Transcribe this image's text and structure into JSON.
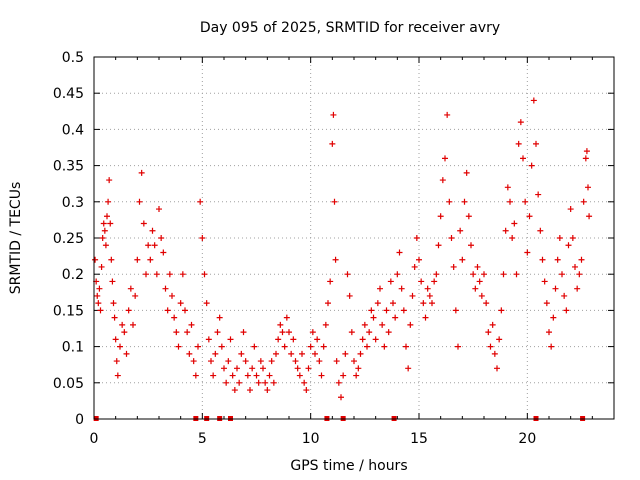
{
  "chart_data": {
    "type": "scatter",
    "title": "Day 095 of 2025, SRMTID for receiver avry",
    "xlabel": "GPS time / hours",
    "ylabel": "SRMTID / TECUs",
    "xlim": [
      0,
      24
    ],
    "ylim": [
      0,
      0.5
    ],
    "x_ticks": [
      "0",
      "5",
      "10",
      "15",
      "20"
    ],
    "y_ticks": [
      "0",
      "0.05",
      "0.1",
      "0.15",
      "0.2",
      "0.25",
      "0.3",
      "0.35",
      "0.4",
      "0.45",
      "0.5"
    ],
    "grid": true,
    "marker": "+",
    "color": "#e00000",
    "series": [
      {
        "name": "SRMTID",
        "points": [
          [
            0.05,
            0.22
          ],
          [
            0.1,
            0.19
          ],
          [
            0.15,
            0.17
          ],
          [
            0.2,
            0.16
          ],
          [
            0.25,
            0.18
          ],
          [
            0.3,
            0.15
          ],
          [
            0.35,
            0.21
          ],
          [
            0.4,
            0.25
          ],
          [
            0.45,
            0.27
          ],
          [
            0.5,
            0.26
          ],
          [
            0.55,
            0.24
          ],
          [
            0.6,
            0.28
          ],
          [
            0.65,
            0.3
          ],
          [
            0.7,
            0.33
          ],
          [
            0.75,
            0.27
          ],
          [
            0.8,
            0.22
          ],
          [
            0.85,
            0.19
          ],
          [
            0.9,
            0.16
          ],
          [
            0.95,
            0.14
          ],
          [
            1.0,
            0.11
          ],
          [
            1.05,
            0.08
          ],
          [
            1.1,
            0.06
          ],
          [
            1.2,
            0.1
          ],
          [
            1.3,
            0.13
          ],
          [
            1.4,
            0.12
          ],
          [
            1.5,
            0.09
          ],
          [
            1.6,
            0.15
          ],
          [
            1.7,
            0.18
          ],
          [
            1.8,
            0.13
          ],
          [
            1.9,
            0.17
          ],
          [
            2.0,
            0.22
          ],
          [
            2.1,
            0.3
          ],
          [
            2.2,
            0.34
          ],
          [
            2.3,
            0.27
          ],
          [
            2.4,
            0.2
          ],
          [
            2.5,
            0.24
          ],
          [
            2.6,
            0.22
          ],
          [
            2.7,
            0.26
          ],
          [
            2.8,
            0.24
          ],
          [
            2.9,
            0.2
          ],
          [
            3.0,
            0.29
          ],
          [
            3.1,
            0.25
          ],
          [
            3.2,
            0.23
          ],
          [
            3.3,
            0.18
          ],
          [
            3.4,
            0.15
          ],
          [
            3.5,
            0.2
          ],
          [
            3.6,
            0.17
          ],
          [
            3.7,
            0.14
          ],
          [
            3.8,
            0.12
          ],
          [
            3.9,
            0.1
          ],
          [
            4.0,
            0.16
          ],
          [
            4.1,
            0.2
          ],
          [
            4.2,
            0.15
          ],
          [
            4.3,
            0.12
          ],
          [
            4.4,
            0.09
          ],
          [
            4.5,
            0.13
          ],
          [
            4.6,
            0.08
          ],
          [
            4.7,
            0.06
          ],
          [
            4.8,
            0.1
          ],
          [
            4.9,
            0.3
          ],
          [
            5.0,
            0.25
          ],
          [
            5.1,
            0.2
          ],
          [
            5.2,
            0.16
          ],
          [
            5.3,
            0.11
          ],
          [
            5.4,
            0.08
          ],
          [
            5.5,
            0.06
          ],
          [
            5.6,
            0.09
          ],
          [
            5.7,
            0.12
          ],
          [
            5.8,
            0.14
          ],
          [
            5.9,
            0.1
          ],
          [
            6.0,
            0.07
          ],
          [
            6.1,
            0.05
          ],
          [
            6.2,
            0.08
          ],
          [
            6.3,
            0.11
          ],
          [
            6.4,
            0.06
          ],
          [
            6.5,
            0.04
          ],
          [
            6.6,
            0.07
          ],
          [
            6.7,
            0.05
          ],
          [
            6.8,
            0.09
          ],
          [
            6.9,
            0.12
          ],
          [
            7.0,
            0.08
          ],
          [
            7.1,
            0.06
          ],
          [
            7.2,
            0.04
          ],
          [
            7.3,
            0.07
          ],
          [
            7.4,
            0.1
          ],
          [
            7.5,
            0.06
          ],
          [
            7.6,
            0.05
          ],
          [
            7.7,
            0.08
          ],
          [
            7.8,
            0.07
          ],
          [
            7.9,
            0.05
          ],
          [
            8.0,
            0.04
          ],
          [
            8.1,
            0.06
          ],
          [
            8.2,
            0.08
          ],
          [
            8.3,
            0.05
          ],
          [
            8.4,
            0.09
          ],
          [
            8.5,
            0.11
          ],
          [
            8.6,
            0.13
          ],
          [
            8.7,
            0.12
          ],
          [
            8.8,
            0.1
          ],
          [
            8.9,
            0.14
          ],
          [
            9.0,
            0.12
          ],
          [
            9.1,
            0.09
          ],
          [
            9.2,
            0.11
          ],
          [
            9.3,
            0.08
          ],
          [
            9.4,
            0.07
          ],
          [
            9.5,
            0.06
          ],
          [
            9.6,
            0.09
          ],
          [
            9.7,
            0.05
          ],
          [
            9.8,
            0.04
          ],
          [
            9.9,
            0.07
          ],
          [
            10.0,
            0.1
          ],
          [
            10.1,
            0.12
          ],
          [
            10.2,
            0.09
          ],
          [
            10.3,
            0.11
          ],
          [
            10.4,
            0.08
          ],
          [
            10.5,
            0.06
          ],
          [
            10.6,
            0.1
          ],
          [
            10.7,
            0.13
          ],
          [
            10.8,
            0.16
          ],
          [
            10.9,
            0.19
          ],
          [
            11.0,
            0.38
          ],
          [
            11.05,
            0.42
          ],
          [
            11.1,
            0.3
          ],
          [
            11.15,
            0.22
          ],
          [
            11.2,
            0.08
          ],
          [
            11.3,
            0.05
          ],
          [
            11.4,
            0.03
          ],
          [
            11.5,
            0.06
          ],
          [
            11.6,
            0.09
          ],
          [
            11.7,
            0.2
          ],
          [
            11.8,
            0.17
          ],
          [
            11.9,
            0.12
          ],
          [
            12.0,
            0.08
          ],
          [
            12.1,
            0.06
          ],
          [
            12.2,
            0.07
          ],
          [
            12.3,
            0.09
          ],
          [
            12.4,
            0.11
          ],
          [
            12.5,
            0.13
          ],
          [
            12.6,
            0.1
          ],
          [
            12.7,
            0.12
          ],
          [
            12.8,
            0.15
          ],
          [
            12.9,
            0.14
          ],
          [
            13.0,
            0.11
          ],
          [
            13.1,
            0.16
          ],
          [
            13.2,
            0.18
          ],
          [
            13.3,
            0.13
          ],
          [
            13.4,
            0.1
          ],
          [
            13.5,
            0.15
          ],
          [
            13.6,
            0.12
          ],
          [
            13.7,
            0.19
          ],
          [
            13.8,
            0.16
          ],
          [
            13.9,
            0.14
          ],
          [
            14.0,
            0.2
          ],
          [
            14.1,
            0.23
          ],
          [
            14.2,
            0.18
          ],
          [
            14.3,
            0.15
          ],
          [
            14.4,
            0.1
          ],
          [
            14.5,
            0.07
          ],
          [
            14.6,
            0.13
          ],
          [
            14.7,
            0.17
          ],
          [
            14.8,
            0.21
          ],
          [
            14.9,
            0.25
          ],
          [
            15.0,
            0.22
          ],
          [
            15.1,
            0.19
          ],
          [
            15.2,
            0.16
          ],
          [
            15.3,
            0.14
          ],
          [
            15.4,
            0.18
          ],
          [
            15.5,
            0.17
          ],
          [
            15.6,
            0.16
          ],
          [
            15.7,
            0.19
          ],
          [
            15.8,
            0.2
          ],
          [
            15.9,
            0.24
          ],
          [
            16.0,
            0.28
          ],
          [
            16.1,
            0.33
          ],
          [
            16.2,
            0.36
          ],
          [
            16.3,
            0.42
          ],
          [
            16.4,
            0.3
          ],
          [
            16.5,
            0.25
          ],
          [
            16.6,
            0.21
          ],
          [
            16.7,
            0.15
          ],
          [
            16.8,
            0.1
          ],
          [
            16.9,
            0.26
          ],
          [
            17.0,
            0.22
          ],
          [
            17.1,
            0.3
          ],
          [
            17.2,
            0.34
          ],
          [
            17.3,
            0.28
          ],
          [
            17.4,
            0.24
          ],
          [
            17.5,
            0.2
          ],
          [
            17.6,
            0.18
          ],
          [
            17.7,
            0.21
          ],
          [
            17.8,
            0.19
          ],
          [
            17.9,
            0.17
          ],
          [
            18.0,
            0.2
          ],
          [
            18.1,
            0.16
          ],
          [
            18.2,
            0.12
          ],
          [
            18.3,
            0.1
          ],
          [
            18.4,
            0.13
          ],
          [
            18.5,
            0.09
          ],
          [
            18.6,
            0.07
          ],
          [
            18.7,
            0.11
          ],
          [
            18.8,
            0.15
          ],
          [
            18.9,
            0.2
          ],
          [
            19.0,
            0.26
          ],
          [
            19.1,
            0.32
          ],
          [
            19.2,
            0.3
          ],
          [
            19.3,
            0.25
          ],
          [
            19.4,
            0.27
          ],
          [
            19.5,
            0.2
          ],
          [
            19.6,
            0.38
          ],
          [
            19.7,
            0.41
          ],
          [
            19.8,
            0.36
          ],
          [
            19.9,
            0.3
          ],
          [
            20.0,
            0.23
          ],
          [
            20.1,
            0.28
          ],
          [
            20.2,
            0.35
          ],
          [
            20.3,
            0.44
          ],
          [
            20.4,
            0.38
          ],
          [
            20.5,
            0.31
          ],
          [
            20.6,
            0.26
          ],
          [
            20.7,
            0.22
          ],
          [
            20.8,
            0.19
          ],
          [
            20.9,
            0.16
          ],
          [
            21.0,
            0.12
          ],
          [
            21.1,
            0.1
          ],
          [
            21.2,
            0.14
          ],
          [
            21.3,
            0.18
          ],
          [
            21.4,
            0.22
          ],
          [
            21.5,
            0.25
          ],
          [
            21.6,
            0.2
          ],
          [
            21.7,
            0.17
          ],
          [
            21.8,
            0.15
          ],
          [
            21.9,
            0.24
          ],
          [
            22.0,
            0.29
          ],
          [
            22.1,
            0.25
          ],
          [
            22.2,
            0.21
          ],
          [
            22.3,
            0.18
          ],
          [
            22.4,
            0.2
          ],
          [
            22.5,
            0.22
          ],
          [
            22.6,
            0.3
          ],
          [
            22.7,
            0.36
          ],
          [
            22.75,
            0.37
          ],
          [
            22.8,
            0.32
          ],
          [
            22.85,
            0.28
          ]
        ]
      }
    ],
    "flags": [
      0.1,
      4.7,
      5.2,
      5.8,
      6.3,
      10.75,
      11.5,
      13.85,
      20.4,
      22.55
    ]
  }
}
